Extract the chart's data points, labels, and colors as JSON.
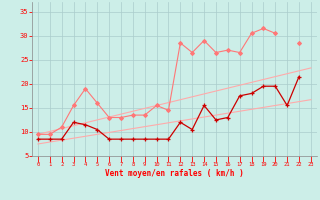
{
  "x": [
    0,
    1,
    2,
    3,
    4,
    5,
    6,
    7,
    8,
    9,
    10,
    11,
    12,
    13,
    14,
    15,
    16,
    17,
    18,
    19,
    20,
    21,
    22,
    23
  ],
  "reg_upper": [
    9.5,
    10.1,
    10.7,
    11.3,
    11.9,
    12.5,
    13.1,
    13.7,
    14.3,
    14.9,
    15.5,
    16.1,
    16.7,
    17.3,
    17.9,
    18.5,
    19.1,
    19.7,
    20.3,
    20.9,
    21.5,
    22.1,
    22.7,
    23.3
  ],
  "reg_lower": [
    7.5,
    7.9,
    8.3,
    8.7,
    9.1,
    9.5,
    9.9,
    10.3,
    10.7,
    11.1,
    11.5,
    11.9,
    12.3,
    12.7,
    13.1,
    13.5,
    13.9,
    14.3,
    14.7,
    15.1,
    15.5,
    15.9,
    16.3,
    16.7
  ],
  "rafales": [
    9.5,
    9.5,
    11.0,
    15.5,
    19.0,
    16.0,
    13.0,
    13.0,
    13.5,
    13.5,
    15.5,
    14.5,
    28.5,
    26.5,
    29.0,
    26.5,
    27.0,
    26.5,
    30.5,
    31.5,
    30.5,
    null,
    28.5,
    null
  ],
  "vent": [
    8.5,
    8.5,
    8.5,
    12.0,
    11.5,
    10.5,
    8.5,
    8.5,
    8.5,
    8.5,
    8.5,
    8.5,
    12.0,
    10.5,
    15.5,
    12.5,
    13.0,
    17.5,
    18.0,
    19.5,
    19.5,
    15.5,
    21.5,
    null
  ],
  "bg": "#cceee8",
  "grid_c": "#aacccc",
  "c_light": "#ffaaaa",
  "c_mid": "#ff7777",
  "c_dark": "#cc0000",
  "xlabel": "Vent moyen/en rafales ( km/h )",
  "xlim": [
    -0.5,
    23.5
  ],
  "ylim": [
    5,
    37
  ],
  "yticks": [
    5,
    10,
    15,
    20,
    25,
    30,
    35
  ],
  "xticks": [
    0,
    1,
    2,
    3,
    4,
    5,
    6,
    7,
    8,
    9,
    10,
    11,
    12,
    13,
    14,
    15,
    16,
    17,
    18,
    19,
    20,
    21,
    22,
    23
  ]
}
